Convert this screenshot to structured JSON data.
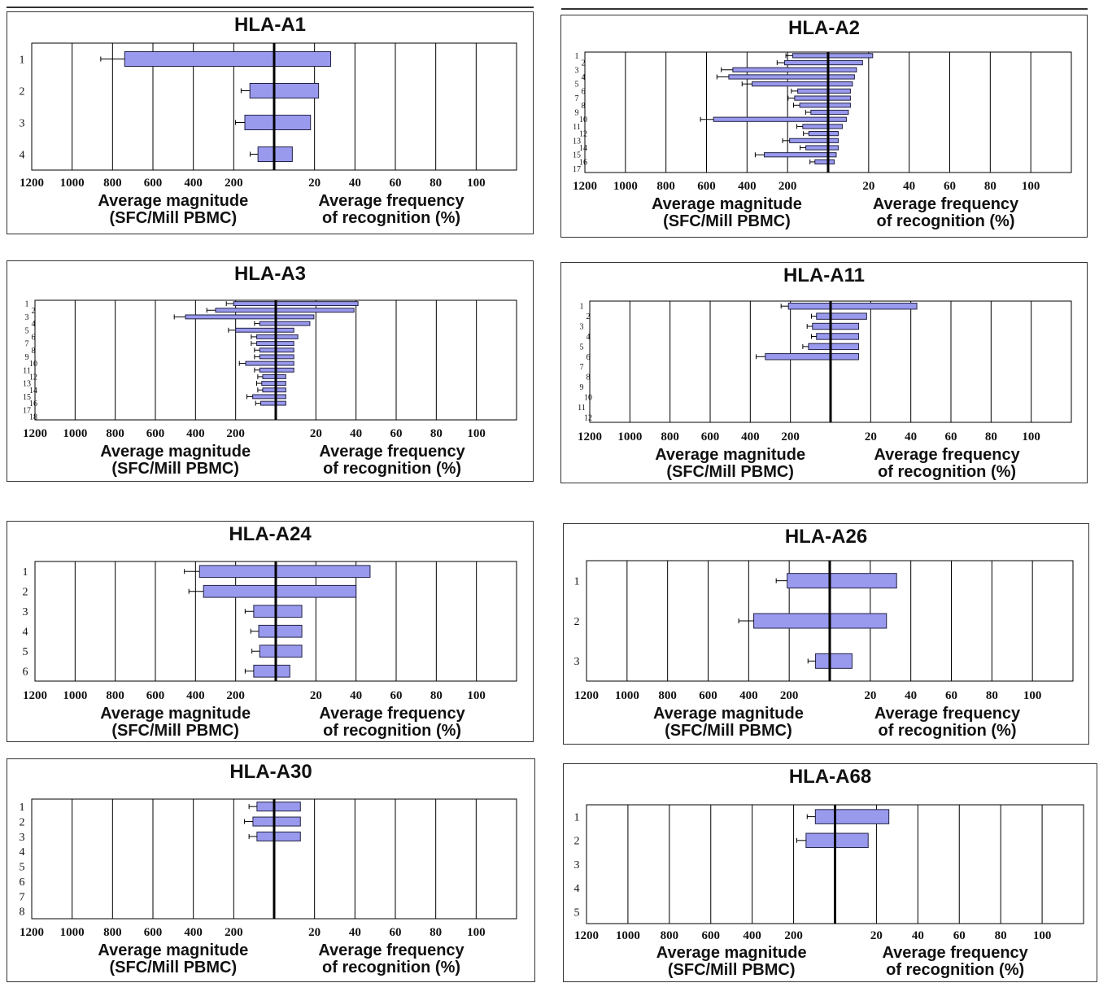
{
  "labels": {
    "magnitude_line1": "Average magnitude",
    "magnitude_line2": "(SFC/Mill PBMC)",
    "frequency_line1": "Average frequency",
    "frequency_line2": "of recognition (%)"
  },
  "colors": {
    "bar_fill": "#9999ee",
    "bar_stroke": "#222244",
    "grid": "#000000"
  },
  "axis_ticks": {
    "magnitude": [
      "1200",
      "1000",
      "800",
      "600",
      "400",
      "200"
    ],
    "frequency": [
      "20",
      "40",
      "60",
      "80",
      "100"
    ]
  },
  "chart_data": [
    {
      "type": "bar",
      "title": "HLA-A1",
      "categories": [
        "1",
        "2",
        "3",
        "4"
      ],
      "series": [
        {
          "values": [
            740,
            120,
            145,
            80
          ]
        },
        {
          "values": [
            28,
            22,
            18,
            9
          ]
        }
      ],
      "xlim_magnitude": [
        0,
        1200
      ],
      "xlim_frequency": [
        0,
        100
      ]
    },
    {
      "type": "bar",
      "title": "HLA-A2",
      "categories": [
        "1",
        "2",
        "3",
        "4",
        "5",
        "6",
        "7",
        "8",
        "9",
        "10",
        "11",
        "12",
        "13",
        "14",
        "15",
        "16",
        "17"
      ],
      "series": [
        {
          "values": [
            175,
            215,
            470,
            490,
            375,
            150,
            165,
            140,
            85,
            565,
            125,
            95,
            190,
            110,
            315,
            65,
            0
          ]
        },
        {
          "values": [
            22,
            17,
            14,
            13,
            12,
            11,
            11,
            11,
            10,
            9,
            7,
            5,
            5,
            5,
            4,
            3,
            0
          ]
        }
      ],
      "xlim_magnitude": [
        0,
        1200
      ],
      "xlim_frequency": [
        0,
        100
      ]
    },
    {
      "type": "bar",
      "title": "HLA-A3",
      "categories": [
        "1",
        "2",
        "3",
        "4",
        "5",
        "6",
        "7",
        "8",
        "9",
        "10",
        "11",
        "12",
        "13",
        "14",
        "15",
        "16",
        "17",
        "18"
      ],
      "series": [
        {
          "values": [
            210,
            300,
            450,
            80,
            200,
            95,
            95,
            80,
            80,
            150,
            80,
            65,
            70,
            65,
            115,
            75,
            0,
            0
          ]
        },
        {
          "values": [
            41,
            39,
            19,
            17,
            9,
            11,
            9,
            9,
            9,
            9,
            9,
            5,
            5,
            5,
            5,
            5,
            0,
            0
          ]
        }
      ],
      "xlim_magnitude": [
        0,
        1200
      ],
      "xlim_frequency": [
        0,
        100
      ]
    },
    {
      "type": "bar",
      "title": "HLA-A11",
      "categories": [
        "1",
        "2",
        "3",
        "4",
        "5",
        "6",
        "7",
        "8",
        "9",
        "10",
        "11",
        "12"
      ],
      "series": [
        {
          "values": [
            210,
            70,
            90,
            70,
            110,
            325,
            0,
            0,
            0,
            0,
            0,
            0
          ]
        },
        {
          "values": [
            43,
            18,
            14,
            14,
            14,
            14,
            0,
            0,
            0,
            0,
            0,
            0
          ]
        }
      ],
      "xlim_magnitude": [
        0,
        1200
      ],
      "xlim_frequency": [
        0,
        100
      ]
    },
    {
      "type": "bar",
      "title": "HLA-A24",
      "categories": [
        "1",
        "2",
        "3",
        "4",
        "5",
        "6"
      ],
      "series": [
        {
          "values": [
            380,
            360,
            110,
            85,
            80,
            110
          ]
        },
        {
          "values": [
            47,
            40,
            13,
            13,
            13,
            7
          ]
        }
      ],
      "xlim_magnitude": [
        0,
        1200
      ],
      "xlim_frequency": [
        0,
        100
      ]
    },
    {
      "type": "bar",
      "title": "HLA-A26",
      "categories": [
        "1",
        "2",
        "3"
      ],
      "series": [
        {
          "values": [
            210,
            375,
            70
          ]
        },
        {
          "values": [
            33,
            28,
            11
          ]
        }
      ],
      "xlim_magnitude": [
        0,
        1200
      ],
      "xlim_frequency": [
        0,
        100
      ]
    },
    {
      "type": "bar",
      "title": "HLA-A30",
      "categories": [
        "1",
        "2",
        "3",
        "4",
        "5",
        "6",
        "7",
        "8"
      ],
      "series": [
        {
          "values": [
            85,
            105,
            85,
            0,
            0,
            0,
            0,
            0
          ]
        },
        {
          "values": [
            13,
            13,
            13,
            0,
            0,
            0,
            0,
            0
          ]
        }
      ],
      "xlim_magnitude": [
        0,
        1200
      ],
      "xlim_frequency": [
        0,
        100
      ]
    },
    {
      "type": "bar",
      "title": "HLA-A68",
      "categories": [
        "1",
        "2",
        "3",
        "4",
        "5"
      ],
      "series": [
        {
          "values": [
            95,
            140,
            0,
            0,
            0
          ]
        },
        {
          "values": [
            26,
            16,
            0,
            0,
            0
          ]
        }
      ],
      "xlim_magnitude": [
        0,
        1200
      ],
      "xlim_frequency": [
        0,
        100
      ]
    }
  ]
}
